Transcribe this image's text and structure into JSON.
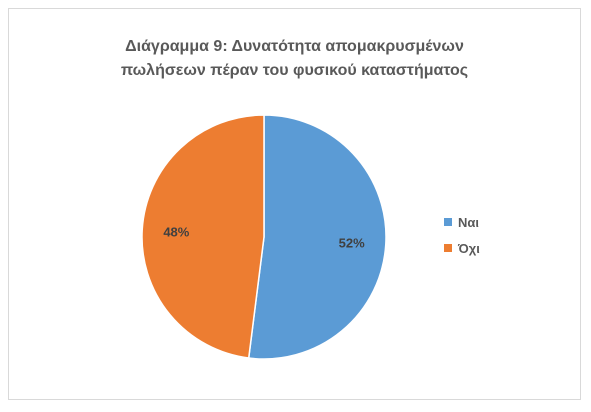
{
  "colors": {
    "yes": "#5B9BD5",
    "no": "#ED7D31"
  },
  "chart_data": {
    "type": "pie",
    "title": {
      "line1": "Διάγραμμα 9: Δυνατότητα απομακρυσμένων",
      "line2": "πωλήσεων πέραν του φυσικού καταστήματος"
    },
    "slices": [
      {
        "label": "Ναι",
        "value": 52,
        "data_label": "52%",
        "color": "#5B9BD5"
      },
      {
        "label": "Όχι",
        "value": 48,
        "data_label": "48%",
        "color": "#ED7D31"
      }
    ],
    "legend": {
      "position": "right",
      "items": [
        "Ναι",
        "Όχι"
      ]
    }
  }
}
